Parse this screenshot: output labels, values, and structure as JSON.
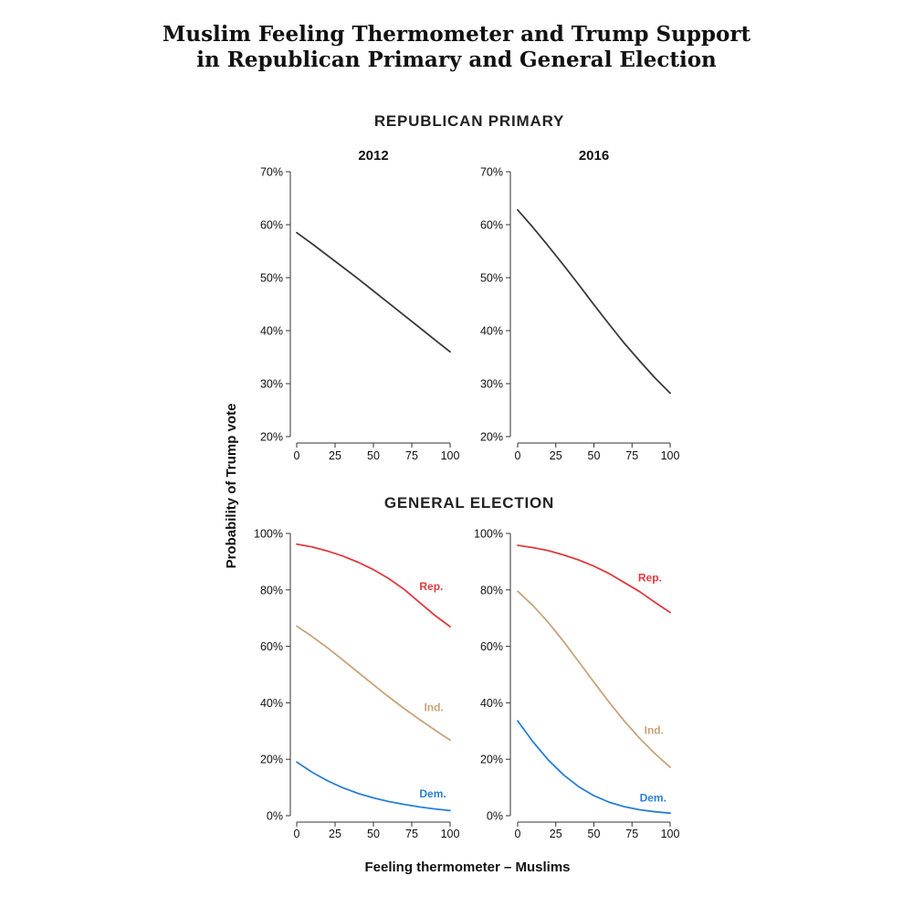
{
  "figure": {
    "title_line1": "Muslim Feeling Thermometer and Trump Support",
    "title_line2": "in Republican Primary and General Election",
    "ylabel": "Probability of Trump vote",
    "xlabel": "Feeling thermometer – Muslims"
  },
  "sections": {
    "primary": "REPUBLICAN PRIMARY",
    "general": "GENERAL ELECTION"
  },
  "chart_data": [
    {
      "type": "line",
      "section": "REPUBLICAN PRIMARY",
      "title": "2012",
      "xlim": [
        0,
        100
      ],
      "ylim": [
        20,
        70
      ],
      "xticks": [
        0,
        25,
        50,
        75,
        100
      ],
      "yticks": [
        20,
        30,
        40,
        50,
        60,
        70
      ],
      "ytick_labels": [
        "20%",
        "30%",
        "40%",
        "50%",
        "60%",
        "70%"
      ],
      "x": [
        0,
        10,
        20,
        30,
        40,
        50,
        60,
        70,
        80,
        90,
        100
      ],
      "series": [
        {
          "name": "",
          "color": "#3a3a3a",
          "values": [
            58.5,
            56.4,
            54.2,
            52.0,
            49.8,
            47.5,
            45.2,
            42.9,
            40.6,
            38.3,
            36.0
          ]
        }
      ]
    },
    {
      "type": "line",
      "section": "REPUBLICAN PRIMARY",
      "title": "2016",
      "xlim": [
        0,
        100
      ],
      "ylim": [
        20,
        70
      ],
      "xticks": [
        0,
        25,
        50,
        75,
        100
      ],
      "yticks": [
        20,
        30,
        40,
        50,
        60,
        70
      ],
      "ytick_labels": [
        "20%",
        "30%",
        "40%",
        "50%",
        "60%",
        "70%"
      ],
      "x": [
        0,
        10,
        20,
        30,
        40,
        50,
        60,
        70,
        80,
        90,
        100
      ],
      "series": [
        {
          "name": "",
          "color": "#3a3a3a",
          "values": [
            62.8,
            59.5,
            56.0,
            52.4,
            48.7,
            44.9,
            41.2,
            37.6,
            34.3,
            31.1,
            28.2
          ]
        }
      ]
    },
    {
      "type": "line",
      "section": "GENERAL ELECTION",
      "title": "",
      "xlim": [
        0,
        100
      ],
      "ylim": [
        0,
        100
      ],
      "xticks": [
        0,
        25,
        50,
        75,
        100
      ],
      "yticks": [
        0,
        20,
        40,
        60,
        80,
        100
      ],
      "ytick_labels": [
        "0%",
        "20%",
        "40%",
        "60%",
        "80%",
        "100%"
      ],
      "x": [
        0,
        10,
        20,
        30,
        40,
        50,
        60,
        70,
        80,
        90,
        100
      ],
      "series": [
        {
          "name": "Rep.",
          "color": "#e03a3e",
          "values": [
            96.2,
            95.2,
            93.8,
            92.0,
            89.8,
            87.2,
            84.0,
            80.2,
            75.6,
            71.0,
            67.0
          ]
        },
        {
          "name": "Ind.",
          "color": "#c8a47a",
          "values": [
            67.2,
            63.5,
            59.5,
            55.2,
            50.8,
            46.4,
            42.1,
            38.0,
            34.1,
            30.4,
            26.8
          ]
        },
        {
          "name": "Dem.",
          "color": "#2a7fd4",
          "values": [
            19.0,
            15.4,
            12.4,
            9.9,
            7.9,
            6.3,
            5.0,
            4.0,
            3.1,
            2.4,
            1.8
          ]
        }
      ],
      "series_label_x": [
        80,
        83,
        80
      ],
      "series_label_y": [
        80,
        37,
        6.5
      ]
    },
    {
      "type": "line",
      "section": "GENERAL ELECTION",
      "title": "",
      "xlim": [
        0,
        100
      ],
      "ylim": [
        0,
        100
      ],
      "xticks": [
        0,
        25,
        50,
        75,
        100
      ],
      "yticks": [
        0,
        20,
        40,
        60,
        80,
        100
      ],
      "ytick_labels": [
        "0%",
        "20%",
        "40%",
        "60%",
        "80%",
        "100%"
      ],
      "x": [
        0,
        10,
        20,
        30,
        40,
        50,
        60,
        70,
        80,
        90,
        100
      ],
      "series": [
        {
          "name": "Rep.",
          "color": "#e03a3e",
          "values": [
            95.8,
            95.0,
            93.9,
            92.4,
            90.6,
            88.4,
            85.8,
            82.6,
            79.4,
            75.6,
            72.0
          ]
        },
        {
          "name": "Ind.",
          "color": "#c8a47a",
          "values": [
            79.5,
            74.5,
            68.5,
            61.8,
            54.6,
            47.3,
            40.2,
            33.5,
            27.4,
            22.0,
            17.2
          ]
        },
        {
          "name": "Dem.",
          "color": "#2a7fd4",
          "values": [
            33.6,
            26.2,
            19.8,
            14.5,
            10.3,
            7.1,
            4.8,
            3.2,
            2.1,
            1.4,
            0.9
          ]
        }
      ],
      "series_label_x": [
        79,
        83,
        80
      ],
      "series_label_y": [
        83,
        29,
        5
      ]
    }
  ]
}
